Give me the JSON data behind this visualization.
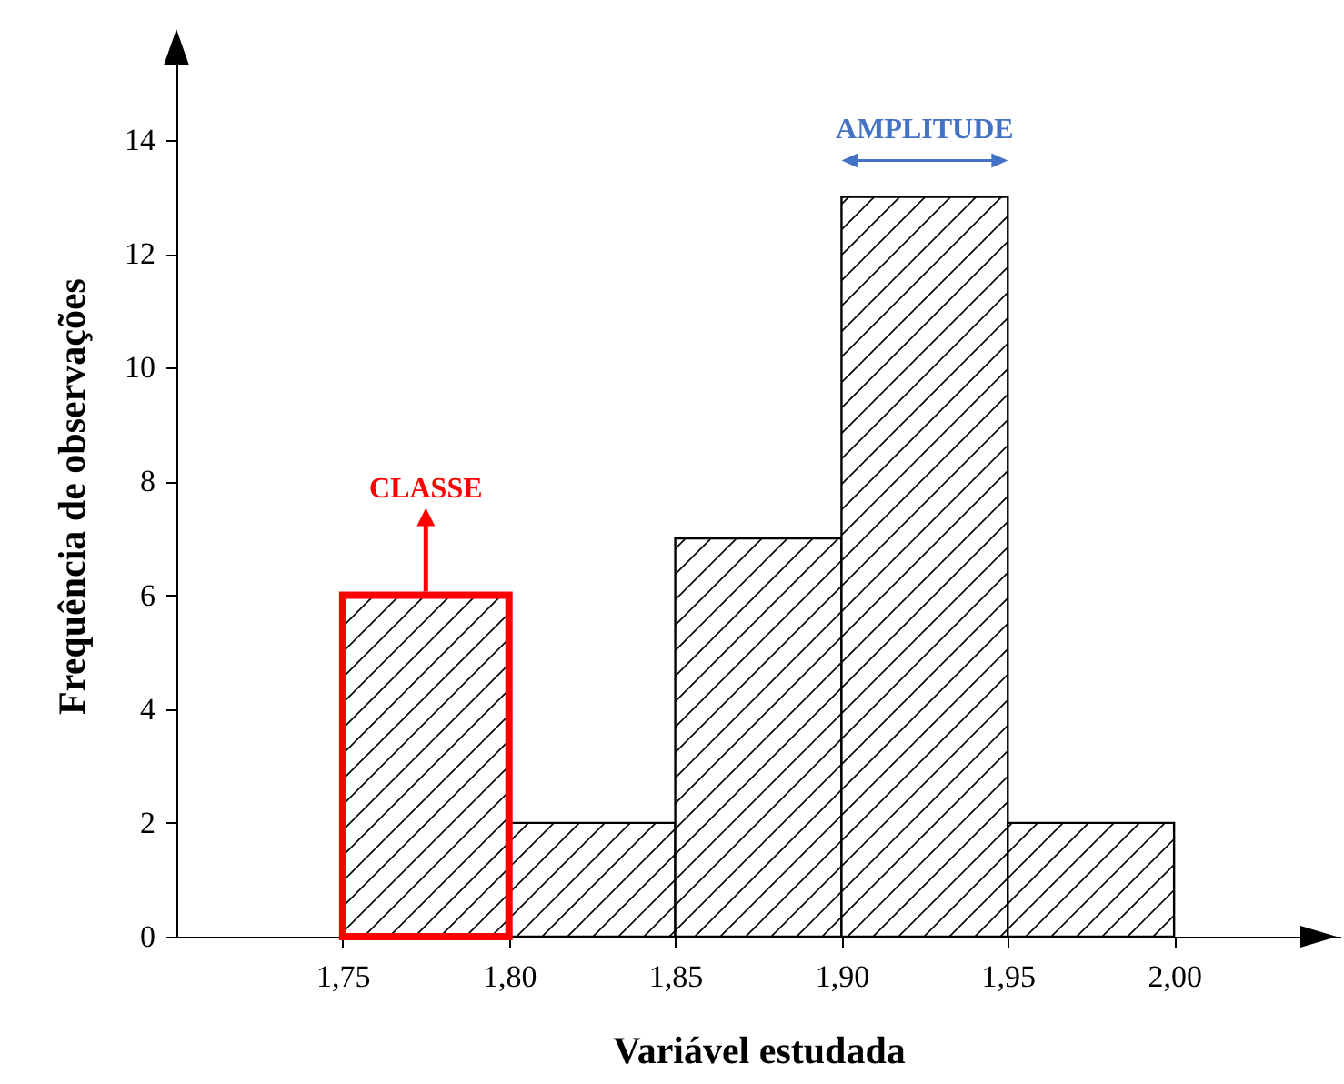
{
  "chart_data": {
    "type": "histogram",
    "xlabel": "Variável estudada",
    "ylabel": "Frequência de observações",
    "bins": [
      1.75,
      1.8,
      1.85,
      1.9,
      1.95,
      2.0
    ],
    "values": [
      6,
      2,
      7,
      13,
      2
    ],
    "color": "#000000",
    "xlim": [
      1.7,
      2.05
    ],
    "ylim": [
      0,
      15.5
    ],
    "xticks": [
      {
        "value": 1.75,
        "label": "1,75"
      },
      {
        "value": 1.8,
        "label": "1,80"
      },
      {
        "value": 1.85,
        "label": "1,85"
      },
      {
        "value": 1.9,
        "label": "1,90"
      },
      {
        "value": 1.95,
        "label": "1,95"
      },
      {
        "value": 2.0,
        "label": "2,00"
      }
    ],
    "yticks": [
      0,
      2,
      4,
      6,
      8,
      10,
      12,
      14
    ],
    "grid": false,
    "annotations": [
      {
        "text": "CLASSE",
        "x": 1.775,
        "y": 6
      },
      "AMPLITUDE"
    ]
  }
}
